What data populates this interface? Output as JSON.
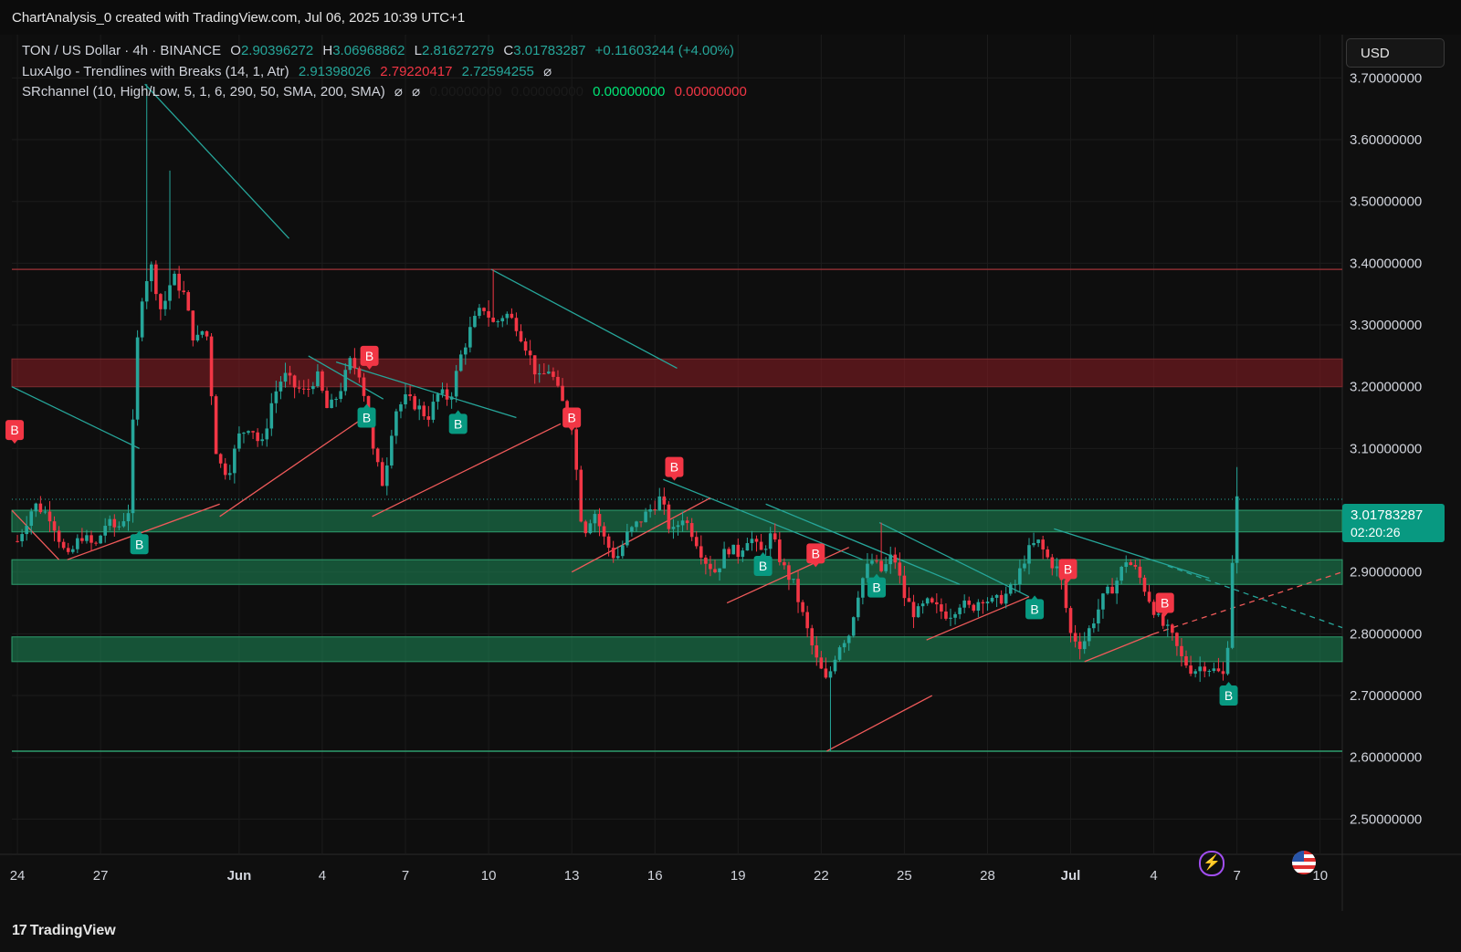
{
  "header": {
    "title": "ChartAnalysis_0 created with TradingView.com, Jul 06, 2025 10:39 UTC+1"
  },
  "legend": {
    "symbol": "TON / US Dollar · 4h · BINANCE",
    "o_label": "O",
    "o": "2.90396272",
    "h_label": "H",
    "h": "3.06968862",
    "l_label": "L",
    "l": "2.81627279",
    "c_label": "C",
    "c": "3.01783287",
    "change": "+0.11603244 (+4.00%)",
    "ind1_name": "LuxAlgo - Trendlines with Breaks (14, 1, Atr)",
    "ind1_v1": "2.91398026",
    "ind1_v2": "2.79220417",
    "ind1_v3": "2.72594255",
    "ind2_name": "SRchannel (10, High/Low, 5, 1, 6, 290, 50, SMA, 200, SMA)",
    "ind2_v1": "0.00000000",
    "ind2_v2": "0.00000000",
    "ind2_v3": "0.00000000",
    "ind2_v4": "0.00000000",
    "eye_icon": "⌀"
  },
  "currency": "USD",
  "price_tag": {
    "price": "3.01783287",
    "countdown": "02:20:26"
  },
  "footer": {
    "brand": "TradingView"
  },
  "colors": {
    "up": "#26a69a",
    "down": "#f23645",
    "zone_green": "#1b6b45",
    "zone_red": "#5a1f22",
    "trend": "#26a69a",
    "trend_red": "#f05a5a"
  },
  "icons": [
    "lightning-icon",
    "us-flag-icon"
  ],
  "chart_data": {
    "type": "candlestick",
    "title": "",
    "timeframe": "4h",
    "ylim": [
      2.44,
      3.77
    ],
    "y_ticks": [
      "3.70000000",
      "3.60000000",
      "3.50000000",
      "3.40000000",
      "3.30000000",
      "3.20000000",
      "3.10000000",
      "3.00000000",
      "2.90000000",
      "2.80000000",
      "2.70000000",
      "2.60000000",
      "2.50000000"
    ],
    "y_tick_values": [
      3.7,
      3.6,
      3.5,
      3.4,
      3.3,
      3.2,
      3.1,
      3.0,
      2.9,
      2.8,
      2.7,
      2.6,
      2.5
    ],
    "x_ticks": [
      "24",
      "27",
      "Jun",
      "4",
      "7",
      "10",
      "13",
      "16",
      "19",
      "22",
      "25",
      "28",
      "Jul",
      "4",
      "7",
      "10"
    ],
    "x_tick_days": [
      0,
      3,
      8,
      11,
      14,
      17,
      20,
      23,
      26,
      29,
      32,
      35,
      38,
      41,
      44,
      47
    ],
    "x_range_days": [
      -0.2,
      47.8
    ],
    "last_price": 3.01783287,
    "price_path": [
      [
        0,
        2.95
      ],
      [
        0.6,
        3.01
      ],
      [
        1.2,
        2.99
      ],
      [
        1.8,
        2.92
      ],
      [
        2.3,
        2.96
      ],
      [
        2.8,
        2.94
      ],
      [
        3.2,
        2.98
      ],
      [
        3.6,
        2.97
      ],
      [
        4.0,
        3.0
      ],
      [
        4.4,
        3.33
      ],
      [
        4.8,
        3.4
      ],
      [
        5.2,
        3.32
      ],
      [
        5.6,
        3.38
      ],
      [
        6.0,
        3.35
      ],
      [
        6.4,
        3.27
      ],
      [
        6.8,
        3.3
      ],
      [
        7.2,
        3.08
      ],
      [
        7.6,
        3.06
      ],
      [
        8.0,
        3.12
      ],
      [
        8.4,
        3.14
      ],
      [
        8.8,
        3.1
      ],
      [
        9.2,
        3.18
      ],
      [
        9.6,
        3.22
      ],
      [
        10.0,
        3.2
      ],
      [
        10.4,
        3.19
      ],
      [
        10.8,
        3.22
      ],
      [
        11.2,
        3.16
      ],
      [
        11.6,
        3.19
      ],
      [
        12.0,
        3.24
      ],
      [
        12.4,
        3.22
      ],
      [
        12.8,
        3.1
      ],
      [
        13.2,
        3.04
      ],
      [
        13.6,
        3.16
      ],
      [
        14.0,
        3.18
      ],
      [
        14.4,
        3.17
      ],
      [
        14.8,
        3.15
      ],
      [
        15.2,
        3.19
      ],
      [
        15.6,
        3.18
      ],
      [
        16.0,
        3.25
      ],
      [
        16.4,
        3.3
      ],
      [
        16.8,
        3.33
      ],
      [
        17.2,
        3.3
      ],
      [
        17.6,
        3.32
      ],
      [
        18.0,
        3.3
      ],
      [
        18.4,
        3.26
      ],
      [
        18.8,
        3.21
      ],
      [
        19.2,
        3.23
      ],
      [
        19.6,
        3.18
      ],
      [
        20.0,
        3.14
      ],
      [
        20.4,
        2.96
      ],
      [
        20.8,
        3.0
      ],
      [
        21.2,
        2.95
      ],
      [
        21.6,
        2.92
      ],
      [
        22.0,
        2.96
      ],
      [
        22.4,
        2.98
      ],
      [
        22.8,
        3.0
      ],
      [
        23.2,
        3.02
      ],
      [
        23.6,
        2.96
      ],
      [
        24.0,
        2.99
      ],
      [
        24.4,
        2.96
      ],
      [
        24.8,
        2.92
      ],
      [
        25.2,
        2.9
      ],
      [
        25.6,
        2.94
      ],
      [
        26.0,
        2.93
      ],
      [
        26.4,
        2.96
      ],
      [
        26.8,
        2.93
      ],
      [
        27.2,
        2.96
      ],
      [
        27.6,
        2.91
      ],
      [
        28.0,
        2.88
      ],
      [
        28.4,
        2.82
      ],
      [
        28.8,
        2.76
      ],
      [
        29.2,
        2.72
      ],
      [
        29.6,
        2.78
      ],
      [
        30.0,
        2.8
      ],
      [
        30.4,
        2.88
      ],
      [
        30.8,
        2.92
      ],
      [
        31.2,
        2.9
      ],
      [
        31.6,
        2.93
      ],
      [
        32.0,
        2.86
      ],
      [
        32.4,
        2.83
      ],
      [
        32.8,
        2.85
      ],
      [
        33.2,
        2.84
      ],
      [
        33.6,
        2.83
      ],
      [
        34.0,
        2.85
      ],
      [
        34.4,
        2.84
      ],
      [
        34.8,
        2.86
      ],
      [
        35.2,
        2.85
      ],
      [
        35.6,
        2.86
      ],
      [
        36.0,
        2.88
      ],
      [
        36.4,
        2.93
      ],
      [
        36.8,
        2.95
      ],
      [
        37.2,
        2.92
      ],
      [
        37.6,
        2.9
      ],
      [
        38.0,
        2.8
      ],
      [
        38.4,
        2.78
      ],
      [
        38.8,
        2.82
      ],
      [
        39.2,
        2.86
      ],
      [
        39.6,
        2.88
      ],
      [
        40.0,
        2.92
      ],
      [
        40.4,
        2.9
      ],
      [
        40.8,
        2.86
      ],
      [
        41.2,
        2.82
      ],
      [
        41.6,
        2.8
      ],
      [
        42.0,
        2.76
      ],
      [
        42.4,
        2.74
      ],
      [
        42.8,
        2.75
      ],
      [
        43.2,
        2.74
      ],
      [
        43.6,
        2.73
      ],
      [
        43.8,
        2.9
      ],
      [
        44.0,
        3.01783287
      ]
    ],
    "spike_highs": [
      [
        4.6,
        3.69
      ],
      [
        5.5,
        3.55
      ],
      [
        17.1,
        3.39
      ],
      [
        31.1,
        2.98
      ],
      [
        44.0,
        3.07
      ]
    ],
    "spike_lows": [
      [
        29.3,
        2.61
      ]
    ],
    "sr_zones": [
      {
        "low": 3.2,
        "high": 3.245,
        "color": "red"
      },
      {
        "low": 2.965,
        "high": 3.0,
        "color": "green"
      },
      {
        "low": 2.88,
        "high": 2.92,
        "color": "green"
      },
      {
        "low": 2.755,
        "high": 2.795,
        "color": "green"
      }
    ],
    "sr_lines": [
      3.39,
      2.61
    ],
    "trendlines_down": [
      [
        [
          -0.2,
          3.2
        ],
        [
          4.4,
          3.1
        ]
      ],
      [
        [
          4.6,
          3.69
        ],
        [
          9.8,
          3.44
        ]
      ],
      [
        [
          10.5,
          3.25
        ],
        [
          13.2,
          3.18
        ]
      ],
      [
        [
          11.5,
          3.24
        ],
        [
          18.0,
          3.15
        ]
      ],
      [
        [
          17.1,
          3.39
        ],
        [
          23.8,
          3.23
        ]
      ],
      [
        [
          23.3,
          3.05
        ],
        [
          30.5,
          2.92
        ]
      ],
      [
        [
          27.0,
          3.01
        ],
        [
          34.0,
          2.88
        ]
      ],
      [
        [
          31.1,
          2.98
        ],
        [
          36.5,
          2.86
        ]
      ],
      [
        [
          37.4,
          2.97
        ],
        [
          43.0,
          2.89
        ]
      ]
    ],
    "trendlines_up": [
      [
        [
          1.5,
          2.92
        ],
        [
          1.8,
          2.93
        ],
        [
          -0.2,
          3.0
        ]
      ],
      [
        [
          1.8,
          2.92
        ],
        [
          7.3,
          3.01
        ]
      ],
      [
        [
          7.3,
          2.99
        ],
        [
          12.5,
          3.15
        ]
      ],
      [
        [
          12.8,
          2.99
        ],
        [
          19.6,
          3.14
        ]
      ],
      [
        [
          20.0,
          2.9
        ],
        [
          25.0,
          3.02
        ]
      ],
      [
        [
          25.6,
          2.85
        ],
        [
          30.0,
          2.94
        ]
      ],
      [
        [
          29.2,
          2.61
        ],
        [
          33.0,
          2.7
        ]
      ],
      [
        [
          32.8,
          2.79
        ],
        [
          36.5,
          2.86
        ]
      ],
      [
        [
          38.5,
          2.755
        ],
        [
          41.0,
          2.8
        ]
      ]
    ],
    "dashed_lines": [
      {
        "from": [
          41.0,
          2.8
        ],
        "to": [
          47.8,
          2.9
        ],
        "color": "red"
      },
      {
        "from": [
          41.5,
          2.91
        ],
        "to": [
          47.8,
          2.81
        ],
        "color": "teal"
      }
    ],
    "signals": [
      {
        "label": "B",
        "type": "sell",
        "x": -0.1,
        "y": 3.13
      },
      {
        "label": "B",
        "type": "buy",
        "x": 4.4,
        "y": 2.945
      },
      {
        "label": "B",
        "type": "sell",
        "x": 12.7,
        "y": 3.25
      },
      {
        "label": "B",
        "type": "buy",
        "x": 12.6,
        "y": 3.15
      },
      {
        "label": "B",
        "type": "buy",
        "x": 15.9,
        "y": 3.14
      },
      {
        "label": "B",
        "type": "sell",
        "x": 20.0,
        "y": 3.15
      },
      {
        "label": "B",
        "type": "sell",
        "x": 23.7,
        "y": 3.07
      },
      {
        "label": "B",
        "type": "buy",
        "x": 26.9,
        "y": 2.91
      },
      {
        "label": "B",
        "type": "sell",
        "x": 28.8,
        "y": 2.93
      },
      {
        "label": "B",
        "type": "buy",
        "x": 31.0,
        "y": 2.875
      },
      {
        "label": "B",
        "type": "buy",
        "x": 36.7,
        "y": 2.84
      },
      {
        "label": "B",
        "type": "sell",
        "x": 37.9,
        "y": 2.905
      },
      {
        "label": "B",
        "type": "sell",
        "x": 41.4,
        "y": 2.85
      },
      {
        "label": "B",
        "type": "buy",
        "x": 43.7,
        "y": 2.7
      }
    ]
  }
}
